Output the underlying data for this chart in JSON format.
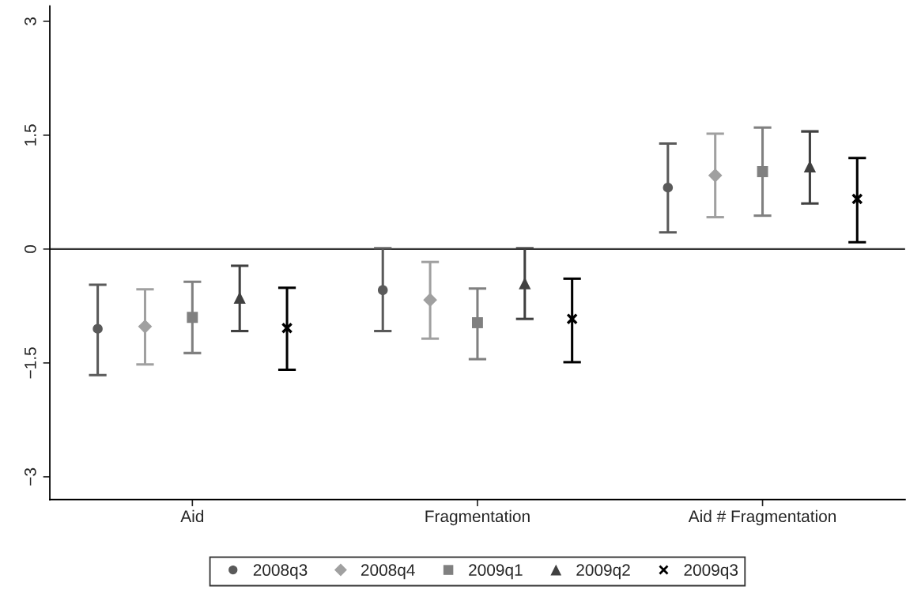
{
  "chart_data": {
    "type": "scatter",
    "categories": [
      "Aid",
      "Fragmentation",
      "Aid # Fragmentation"
    ],
    "ylim": [
      -3.3,
      3.2
    ],
    "yticks": [
      {
        "value": -3,
        "label": "−3"
      },
      {
        "value": -1.5,
        "label": "−1.5"
      },
      0,
      1.5,
      3
    ],
    "grid": false,
    "legend": "bottom",
    "ref_lines": [
      {
        "axis": "y",
        "value": 0,
        "color": "#333333"
      }
    ],
    "series": [
      {
        "name": "2008q3",
        "color": "#5a5a5a",
        "marker": "circle",
        "values": [
          -1.05,
          -0.54,
          0.81
        ],
        "errors": [
          [
            -1.66,
            -0.47
          ],
          [
            -1.08,
            0.01
          ],
          [
            0.22,
            1.39
          ]
        ]
      },
      {
        "name": "2008q4",
        "color": "#a0a0a0",
        "marker": "diamond",
        "values": [
          -1.02,
          -0.67,
          0.97
        ],
        "errors": [
          [
            -1.52,
            -0.53
          ],
          [
            -1.18,
            -0.17
          ],
          [
            0.42,
            1.52
          ]
        ]
      },
      {
        "name": "2009q1",
        "color": "#808080",
        "marker": "square",
        "values": [
          -0.9,
          -0.97,
          1.02
        ],
        "errors": [
          [
            -1.37,
            -0.43
          ],
          [
            -1.45,
            -0.52
          ],
          [
            0.44,
            1.6
          ]
        ]
      },
      {
        "name": "2009q2",
        "color": "#404040",
        "marker": "triangle",
        "values": [
          -0.64,
          -0.45,
          1.09
        ],
        "errors": [
          [
            -1.08,
            -0.22
          ],
          [
            -0.92,
            0.01
          ],
          [
            0.6,
            1.55
          ]
        ]
      },
      {
        "name": "2009q3",
        "color": "#000000",
        "marker": "cross",
        "values": [
          -1.04,
          -0.92,
          0.66
        ],
        "errors": [
          [
            -1.59,
            -0.51
          ],
          [
            -1.49,
            -0.39
          ],
          [
            0.09,
            1.2
          ]
        ]
      }
    ]
  }
}
